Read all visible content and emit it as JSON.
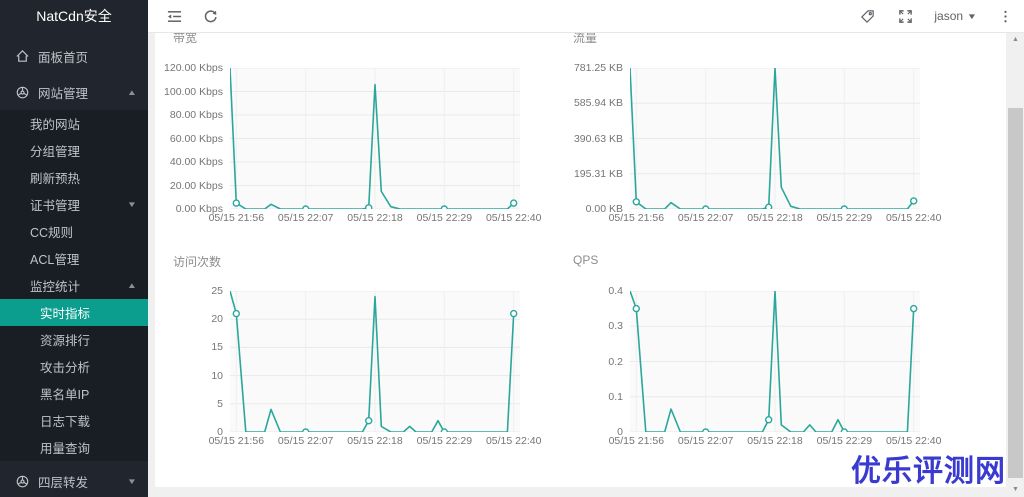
{
  "sidebar": {
    "title": "NatCdn安全",
    "menu": [
      {
        "label": "面板首页",
        "level": 0,
        "icon": "home-icon"
      },
      {
        "label": "网站管理",
        "level": 0,
        "icon": "compass-icon",
        "arrow": "up"
      },
      {
        "label": "我的网站",
        "level": 1
      },
      {
        "label": "分组管理",
        "level": 1
      },
      {
        "label": "刷新预热",
        "level": 1
      },
      {
        "label": "证书管理",
        "level": 1,
        "arrow": "down"
      },
      {
        "label": "CC规则",
        "level": 1
      },
      {
        "label": "ACL管理",
        "level": 1
      },
      {
        "label": "监控统计",
        "level": 1,
        "arrow": "up"
      },
      {
        "label": "实时指标",
        "level": 2,
        "active": true
      },
      {
        "label": "资源排行",
        "level": 2
      },
      {
        "label": "攻击分析",
        "level": 2
      },
      {
        "label": "黑名单IP",
        "level": 2
      },
      {
        "label": "日志下载",
        "level": 2
      },
      {
        "label": "用量查询",
        "level": 2
      }
    ],
    "bottom_item": {
      "label": "四层转发",
      "icon": "compass-icon",
      "arrow": "down"
    },
    "active_color": "#0b9e8e"
  },
  "topbar": {
    "user": "jason",
    "left_icons": [
      "collapse-sidebar-icon",
      "refresh-icon"
    ],
    "right_icons": [
      "tag-icon",
      "fullscreen-icon",
      "user-dropdown",
      "kebab-menu-icon"
    ]
  },
  "watermark": {
    "text": "优乐评测网",
    "color": "#3a3ad1"
  },
  "chart_data": [
    {
      "type": "line",
      "title": "带宽",
      "color": "#2aa79b",
      "ylabel": "Kbps",
      "ymax": 120,
      "xmax": 46,
      "y_tick_labels": [
        "120.00 Kbps",
        "100.00 Kbps",
        "80.00 Kbps",
        "60.00 Kbps",
        "40.00 Kbps",
        "20.00 Kbps",
        "0.00 Kbps"
      ],
      "x_tick_labels": [
        "05/15 21:56",
        "05/15 22:07",
        "05/15 22:18",
        "05/15 22:29",
        "05/15 22:40"
      ],
      "x_tick_pos": [
        1,
        12,
        23,
        34,
        45
      ],
      "points": [
        [
          0,
          120
        ],
        [
          1,
          5
        ],
        [
          2.5,
          0
        ],
        [
          5.5,
          0
        ],
        [
          6.5,
          4
        ],
        [
          8,
          0
        ],
        [
          12,
          0
        ],
        [
          21,
          0
        ],
        [
          22,
          1
        ],
        [
          23,
          106
        ],
        [
          24,
          15
        ],
        [
          25.5,
          2
        ],
        [
          27,
          0
        ],
        [
          34,
          0
        ],
        [
          44,
          0
        ],
        [
          45,
          5
        ]
      ],
      "markers": [
        [
          1,
          5
        ],
        [
          12,
          0
        ],
        [
          22,
          1
        ],
        [
          34,
          0
        ],
        [
          45,
          5
        ]
      ]
    },
    {
      "type": "line",
      "title": "流量",
      "color": "#2aa79b",
      "ylabel": "KB",
      "ymax": 781.25,
      "xmax": 46,
      "y_tick_labels": [
        "781.25 KB",
        "585.94 KB",
        "390.63 KB",
        "195.31 KB",
        "0.00 KB"
      ],
      "x_tick_labels": [
        "05/15 21:56",
        "05/15 22:07",
        "05/15 22:18",
        "05/15 22:29",
        "05/15 22:40"
      ],
      "x_tick_pos": [
        1,
        12,
        23,
        34,
        45
      ],
      "points": [
        [
          0,
          781.25
        ],
        [
          1,
          40
        ],
        [
          2.5,
          0
        ],
        [
          5.5,
          0
        ],
        [
          6.5,
          35
        ],
        [
          8,
          0
        ],
        [
          12,
          0
        ],
        [
          21,
          0
        ],
        [
          22,
          10
        ],
        [
          23,
          781
        ],
        [
          24,
          120
        ],
        [
          25.5,
          15
        ],
        [
          27,
          0
        ],
        [
          34,
          0
        ],
        [
          44,
          0
        ],
        [
          45,
          45
        ]
      ],
      "markers": [
        [
          1,
          40
        ],
        [
          12,
          0
        ],
        [
          22,
          10
        ],
        [
          34,
          0
        ],
        [
          45,
          45
        ]
      ]
    },
    {
      "type": "line",
      "title": "访问次数",
      "color": "#2aa79b",
      "ylabel": "",
      "ymax": 25,
      "xmax": 46,
      "y_tick_labels": [
        "25",
        "20",
        "15",
        "10",
        "5",
        "0"
      ],
      "x_tick_labels": [
        "05/15 21:56",
        "05/15 22:07",
        "05/15 22:18",
        "05/15 22:29",
        "05/15 22:40"
      ],
      "x_tick_pos": [
        1,
        12,
        23,
        34,
        45
      ],
      "points": [
        [
          0,
          25
        ],
        [
          1,
          21
        ],
        [
          2.5,
          0
        ],
        [
          5.5,
          0
        ],
        [
          6.5,
          4
        ],
        [
          8,
          0
        ],
        [
          12,
          0
        ],
        [
          21,
          0
        ],
        [
          22,
          2
        ],
        [
          23,
          24
        ],
        [
          24,
          1
        ],
        [
          25.5,
          0
        ],
        [
          27.5,
          0
        ],
        [
          28.5,
          1
        ],
        [
          29.5,
          0
        ],
        [
          32,
          0
        ],
        [
          33,
          2
        ],
        [
          34,
          0
        ],
        [
          44,
          0
        ],
        [
          45,
          21
        ]
      ],
      "markers": [
        [
          1,
          21
        ],
        [
          12,
          0
        ],
        [
          22,
          2
        ],
        [
          34,
          0
        ],
        [
          45,
          21
        ]
      ]
    },
    {
      "type": "line",
      "title": "QPS",
      "color": "#2aa79b",
      "ylabel": "",
      "ymax": 0.4,
      "xmax": 46,
      "y_tick_labels": [
        "0.4",
        "0.3",
        "0.2",
        "0.1",
        "0"
      ],
      "x_tick_labels": [
        "05/15 21:56",
        "05/15 22:07",
        "05/15 22:18",
        "05/15 22:29",
        "05/15 22:40"
      ],
      "x_tick_pos": [
        1,
        12,
        23,
        34,
        45
      ],
      "points": [
        [
          0,
          0.4
        ],
        [
          1,
          0.35
        ],
        [
          2.5,
          0
        ],
        [
          5.5,
          0
        ],
        [
          6.5,
          0.065
        ],
        [
          8,
          0
        ],
        [
          12,
          0
        ],
        [
          21,
          0
        ],
        [
          22,
          0.035
        ],
        [
          23,
          0.4
        ],
        [
          24,
          0.02
        ],
        [
          25.5,
          0
        ],
        [
          27.5,
          0
        ],
        [
          28.5,
          0.02
        ],
        [
          29.5,
          0
        ],
        [
          32,
          0
        ],
        [
          33,
          0.035
        ],
        [
          34,
          0
        ],
        [
          44,
          0
        ],
        [
          45,
          0.35
        ]
      ],
      "markers": [
        [
          1,
          0.35
        ],
        [
          12,
          0
        ],
        [
          22,
          0.035
        ],
        [
          34,
          0
        ],
        [
          45,
          0.35
        ]
      ]
    }
  ]
}
